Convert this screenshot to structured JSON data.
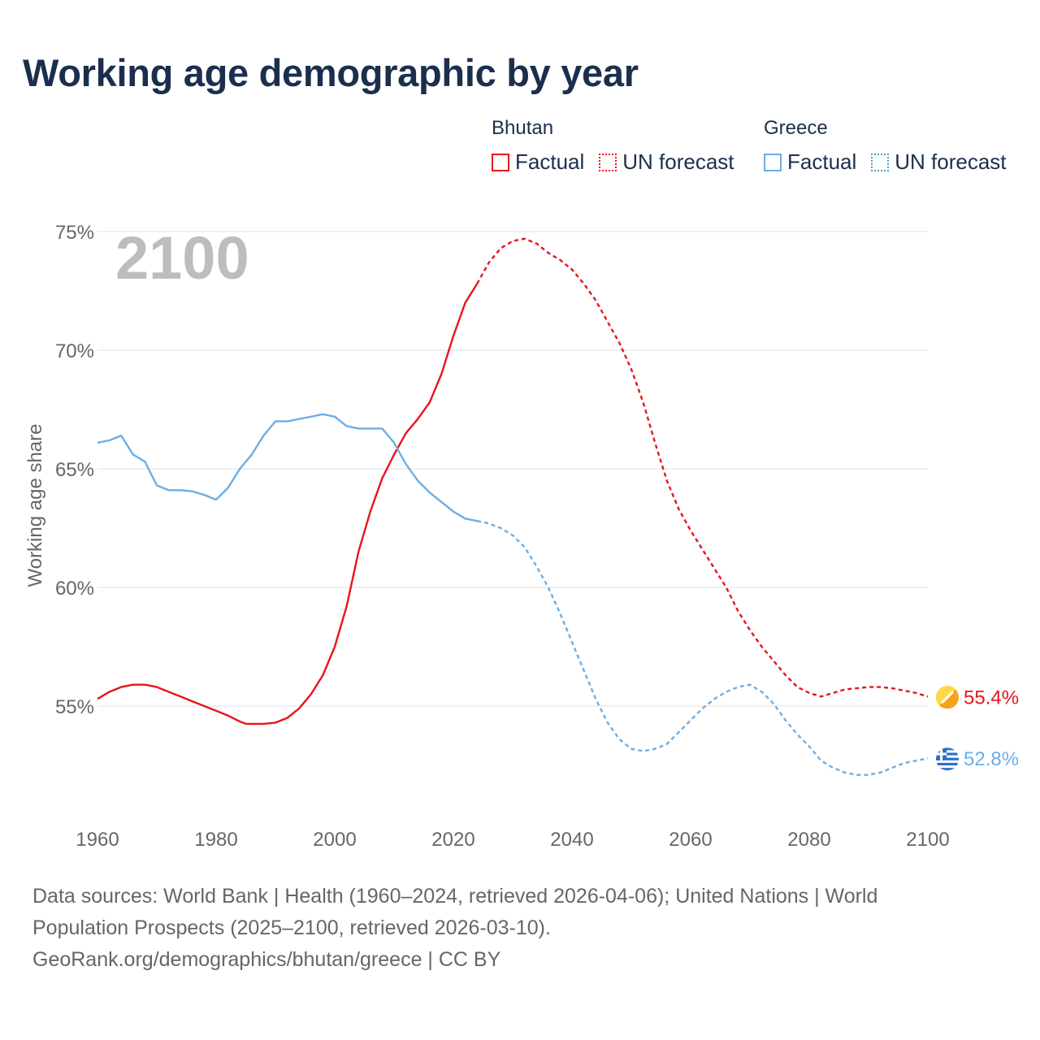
{
  "title": "Working age demographic by year",
  "legend": {
    "groups": [
      {
        "name": "Bhutan",
        "factual_label": "Factual",
        "forecast_label": "UN forecast",
        "color": "#e8141c"
      },
      {
        "name": "Greece",
        "factual_label": "Factual",
        "forecast_label": "UN forecast",
        "color": "#6aaee8"
      }
    ]
  },
  "footer": {
    "line1": "Data sources: World Bank | Health (1960–2024, retrieved 2026-04-06); United Nations | World",
    "line2": "Population Prospects (2025–2100, retrieved 2026-03-10).",
    "line3": "GeoRank.org/demographics/bhutan/greece | CC BY"
  },
  "chart_data": {
    "type": "line",
    "title": "Working age demographic by year",
    "year_label": "2100",
    "xlabel": "",
    "ylabel": "Working age share",
    "xlim": [
      1960,
      2100
    ],
    "ylim": [
      51,
      75.5
    ],
    "x_ticks": [
      1960,
      1980,
      2000,
      2020,
      2040,
      2060,
      2080,
      2100
    ],
    "y_ticks": [
      {
        "value": 55,
        "label": "55%"
      },
      {
        "value": 60,
        "label": "60%"
      },
      {
        "value": 65,
        "label": "65%"
      },
      {
        "value": 70,
        "label": "70%"
      },
      {
        "value": 75,
        "label": "75%"
      }
    ],
    "grid": true,
    "factual_until": 2024,
    "series": [
      {
        "name": "Bhutan",
        "color": "#e8141c",
        "end_label": "55.4%",
        "points": [
          [
            1960,
            55.3
          ],
          [
            1962,
            55.6
          ],
          [
            1963,
            55.7
          ],
          [
            1964,
            55.8
          ],
          [
            1966,
            55.9
          ],
          [
            1968,
            55.9
          ],
          [
            1970,
            55.8
          ],
          [
            1972,
            55.6
          ],
          [
            1974,
            55.4
          ],
          [
            1976,
            55.2
          ],
          [
            1978,
            55.0
          ],
          [
            1980,
            54.8
          ],
          [
            1982,
            54.6
          ],
          [
            1984,
            54.35
          ],
          [
            1985,
            54.25
          ],
          [
            1986,
            54.25
          ],
          [
            1988,
            54.25
          ],
          [
            1990,
            54.3
          ],
          [
            1992,
            54.5
          ],
          [
            1994,
            54.9
          ],
          [
            1996,
            55.5
          ],
          [
            1998,
            56.3
          ],
          [
            2000,
            57.5
          ],
          [
            2002,
            59.2
          ],
          [
            2004,
            61.5
          ],
          [
            2006,
            63.2
          ],
          [
            2008,
            64.6
          ],
          [
            2010,
            65.6
          ],
          [
            2012,
            66.5
          ],
          [
            2014,
            67.1
          ],
          [
            2016,
            67.8
          ],
          [
            2018,
            69.0
          ],
          [
            2020,
            70.6
          ],
          [
            2022,
            72.0
          ],
          [
            2024,
            72.8
          ],
          [
            2026,
            73.7
          ],
          [
            2028,
            74.3
          ],
          [
            2030,
            74.6
          ],
          [
            2032,
            74.7
          ],
          [
            2034,
            74.5
          ],
          [
            2036,
            74.1
          ],
          [
            2038,
            73.8
          ],
          [
            2040,
            73.4
          ],
          [
            2042,
            72.8
          ],
          [
            2044,
            72.1
          ],
          [
            2046,
            71.2
          ],
          [
            2048,
            70.3
          ],
          [
            2050,
            69.2
          ],
          [
            2052,
            67.8
          ],
          [
            2054,
            66.1
          ],
          [
            2056,
            64.5
          ],
          [
            2058,
            63.3
          ],
          [
            2060,
            62.4
          ],
          [
            2062,
            61.6
          ],
          [
            2064,
            60.8
          ],
          [
            2066,
            60.0
          ],
          [
            2068,
            59.0
          ],
          [
            2070,
            58.2
          ],
          [
            2072,
            57.5
          ],
          [
            2074,
            56.9
          ],
          [
            2076,
            56.3
          ],
          [
            2078,
            55.8
          ],
          [
            2080,
            55.55
          ],
          [
            2082,
            55.4
          ],
          [
            2084,
            55.55
          ],
          [
            2086,
            55.7
          ],
          [
            2088,
            55.75
          ],
          [
            2090,
            55.8
          ],
          [
            2092,
            55.8
          ],
          [
            2094,
            55.75
          ],
          [
            2096,
            55.65
          ],
          [
            2098,
            55.55
          ],
          [
            2100,
            55.4
          ]
        ]
      },
      {
        "name": "Greece",
        "color": "#6aaee8",
        "end_label": "52.8%",
        "points": [
          [
            1960,
            66.1
          ],
          [
            1962,
            66.2
          ],
          [
            1964,
            66.4
          ],
          [
            1966,
            65.6
          ],
          [
            1968,
            65.3
          ],
          [
            1970,
            64.3
          ],
          [
            1972,
            64.1
          ],
          [
            1974,
            64.1
          ],
          [
            1976,
            64.05
          ],
          [
            1978,
            63.9
          ],
          [
            1980,
            63.7
          ],
          [
            1982,
            64.2
          ],
          [
            1984,
            65.0
          ],
          [
            1986,
            65.6
          ],
          [
            1988,
            66.4
          ],
          [
            1990,
            67.0
          ],
          [
            1992,
            67.0
          ],
          [
            1994,
            67.1
          ],
          [
            1996,
            67.2
          ],
          [
            1998,
            67.3
          ],
          [
            2000,
            67.2
          ],
          [
            2002,
            66.8
          ],
          [
            2004,
            66.7
          ],
          [
            2006,
            66.7
          ],
          [
            2008,
            66.7
          ],
          [
            2010,
            66.1
          ],
          [
            2012,
            65.2
          ],
          [
            2014,
            64.5
          ],
          [
            2016,
            64.0
          ],
          [
            2018,
            63.6
          ],
          [
            2020,
            63.2
          ],
          [
            2022,
            62.9
          ],
          [
            2024,
            62.8
          ],
          [
            2026,
            62.7
          ],
          [
            2028,
            62.5
          ],
          [
            2030,
            62.2
          ],
          [
            2032,
            61.7
          ],
          [
            2034,
            60.9
          ],
          [
            2036,
            60.0
          ],
          [
            2038,
            58.9
          ],
          [
            2040,
            57.7
          ],
          [
            2042,
            56.5
          ],
          [
            2044,
            55.3
          ],
          [
            2046,
            54.3
          ],
          [
            2048,
            53.6
          ],
          [
            2050,
            53.2
          ],
          [
            2052,
            53.1
          ],
          [
            2054,
            53.2
          ],
          [
            2056,
            53.4
          ],
          [
            2058,
            53.9
          ],
          [
            2060,
            54.4
          ],
          [
            2062,
            54.9
          ],
          [
            2064,
            55.3
          ],
          [
            2066,
            55.6
          ],
          [
            2068,
            55.8
          ],
          [
            2070,
            55.9
          ],
          [
            2072,
            55.6
          ],
          [
            2074,
            55.1
          ],
          [
            2076,
            54.4
          ],
          [
            2078,
            53.8
          ],
          [
            2080,
            53.3
          ],
          [
            2082,
            52.7
          ],
          [
            2084,
            52.4
          ],
          [
            2086,
            52.2
          ],
          [
            2088,
            52.1
          ],
          [
            2090,
            52.1
          ],
          [
            2092,
            52.2
          ],
          [
            2094,
            52.4
          ],
          [
            2096,
            52.6
          ],
          [
            2098,
            52.7
          ],
          [
            2100,
            52.8
          ]
        ]
      }
    ]
  }
}
